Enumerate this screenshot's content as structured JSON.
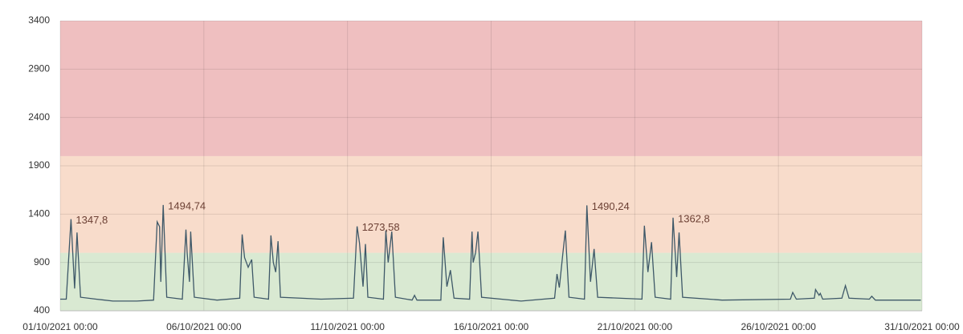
{
  "chart_data": {
    "type": "line",
    "xlim": [
      "01/10/2021 00:00",
      "31/10/2021 00:00"
    ],
    "xticks": [
      "01/10/2021 00:00",
      "06/10/2021 00:00",
      "11/10/2021 00:00",
      "16/10/2021 00:00",
      "21/10/2021 00:00",
      "26/10/2021 00:00",
      "31/10/2021 00:00"
    ],
    "ylim": [
      400,
      3400
    ],
    "yticks": [
      400,
      900,
      1400,
      1900,
      2400,
      2900,
      3400
    ],
    "grid": true,
    "bands": [
      {
        "from": 400,
        "to": 1000,
        "color": "#d9e9d2"
      },
      {
        "from": 1000,
        "to": 2000,
        "color": "#f8dccb"
      },
      {
        "from": 2000,
        "to": 3400,
        "color": "#efbfc0"
      }
    ],
    "x": [
      "01/10/2021 00:00",
      "01/10/2021 05:00",
      "01/10/2021 09:00",
      "01/10/2021 12:00",
      "01/10/2021 14:00",
      "01/10/2021 17:00",
      "02/10/2021 06:00",
      "02/10/2021 20:00",
      "03/10/2021 16:00",
      "04/10/2021 06:00",
      "04/10/2021 09:00",
      "04/10/2021 11:00",
      "04/10/2021 12:00",
      "04/10/2021 14:00",
      "04/10/2021 17:00",
      "05/10/2021 06:00",
      "05/10/2021 09:00",
      "05/10/2021 10:00",
      "05/10/2021 12:00",
      "05/10/2021 13:00",
      "05/10/2021 16:00",
      "06/10/2021 11:00",
      "07/10/2021 06:00",
      "07/10/2021 08:00",
      "07/10/2021 10:00",
      "07/10/2021 13:00",
      "07/10/2021 16:00",
      "07/10/2021 18:00",
      "08/10/2021 06:00",
      "08/10/2021 08:00",
      "08/10/2021 10:00",
      "08/10/2021 12:00",
      "08/10/2021 14:00",
      "08/10/2021 16:00",
      "10/10/2021 02:00",
      "11/10/2021 05:00",
      "11/10/2021 08:00",
      "11/10/2021 10:00",
      "11/10/2021 13:00",
      "11/10/2021 15:00",
      "11/10/2021 17:00",
      "12/10/2021 06:00",
      "12/10/2021 08:00",
      "12/10/2021 10:00",
      "12/10/2021 13:00",
      "12/10/2021 16:00",
      "13/10/2021 06:00",
      "13/10/2021 08:00",
      "13/10/2021 10:00",
      "14/10/2021 06:00",
      "14/10/2021 08:00",
      "14/10/2021 11:00",
      "14/10/2021 13:00",
      "14/10/2021 14:00",
      "14/10/2021 17:00",
      "15/10/2021 06:00",
      "15/10/2021 08:00",
      "15/10/2021 09:00",
      "15/10/2021 11:00",
      "15/10/2021 13:00",
      "15/10/2021 16:00",
      "17/10/2021 01:00",
      "18/10/2021 05:00",
      "18/10/2021 07:00",
      "18/10/2021 09:00",
      "18/10/2021 12:00",
      "18/10/2021 14:00",
      "18/10/2021 17:00",
      "19/10/2021 06:00",
      "19/10/2021 08:00",
      "19/10/2021 11:00",
      "19/10/2021 14:00",
      "19/10/2021 17:00",
      "21/10/2021 06:00",
      "21/10/2021 08:00",
      "21/10/2021 11:00",
      "21/10/2021 14:00",
      "21/10/2021 17:00",
      "22/10/2021 06:00",
      "22/10/2021 08:00",
      "22/10/2021 11:00",
      "22/10/2021 13:00",
      "22/10/2021 16:00",
      "24/10/2021 01:00",
      "26/10/2021 10:00",
      "26/10/2021 12:00",
      "26/10/2021 15:00",
      "27/10/2021 06:00",
      "27/10/2021 07:00",
      "27/10/2021 10:00",
      "27/10/2021 11:00",
      "27/10/2021 13:00",
      "28/10/2021 05:00",
      "28/10/2021 08:00",
      "28/10/2021 11:00",
      "29/10/2021 04:00",
      "29/10/2021 06:00",
      "29/10/2021 09:00",
      "30/10/2021 23:00"
    ],
    "series": [
      {
        "color": "#3e5868",
        "values": [
          520,
          520,
          1347.8,
          630,
          1210,
          540,
          520,
          500,
          500,
          510,
          1320,
          1270,
          700,
          1494.74,
          540,
          520,
          1240,
          1000,
          700,
          1220,
          540,
          510,
          530,
          1190,
          950,
          850,
          930,
          540,
          520,
          1180,
          900,
          800,
          1120,
          540,
          520,
          530,
          1273.58,
          1100,
          650,
          1090,
          540,
          520,
          1230,
          900,
          1220,
          540,
          510,
          560,
          510,
          510,
          1160,
          650,
          760,
          820,
          530,
          520,
          1220,
          900,
          1000,
          1220,
          540,
          500,
          530,
          780,
          640,
          1000,
          1230,
          540,
          520,
          1490.24,
          700,
          1040,
          540,
          520,
          1280,
          800,
          1110,
          540,
          520,
          1362.8,
          750,
          1210,
          540,
          510,
          520,
          590,
          520,
          530,
          620,
          560,
          580,
          520,
          530,
          660,
          530,
          520,
          550,
          510,
          510
        ],
        "value_labels": [
          null,
          null,
          "1347,8",
          null,
          null,
          null,
          null,
          null,
          null,
          null,
          null,
          null,
          null,
          "1494,74",
          null,
          null,
          null,
          null,
          null,
          null,
          null,
          null,
          null,
          null,
          null,
          null,
          null,
          null,
          null,
          null,
          null,
          null,
          null,
          null,
          null,
          null,
          "1273,58",
          null,
          null,
          null,
          null,
          null,
          null,
          null,
          null,
          null,
          null,
          null,
          null,
          null,
          null,
          null,
          null,
          null,
          null,
          null,
          null,
          null,
          null,
          null,
          null,
          null,
          null,
          null,
          null,
          null,
          null,
          null,
          null,
          "1490,24",
          null,
          null,
          null,
          null,
          null,
          null,
          null,
          null,
          null,
          "1362,8",
          null,
          null,
          null,
          null,
          null,
          null,
          null,
          null,
          null,
          null,
          null,
          null,
          null,
          null,
          null,
          null,
          null,
          null,
          null
        ]
      }
    ]
  }
}
